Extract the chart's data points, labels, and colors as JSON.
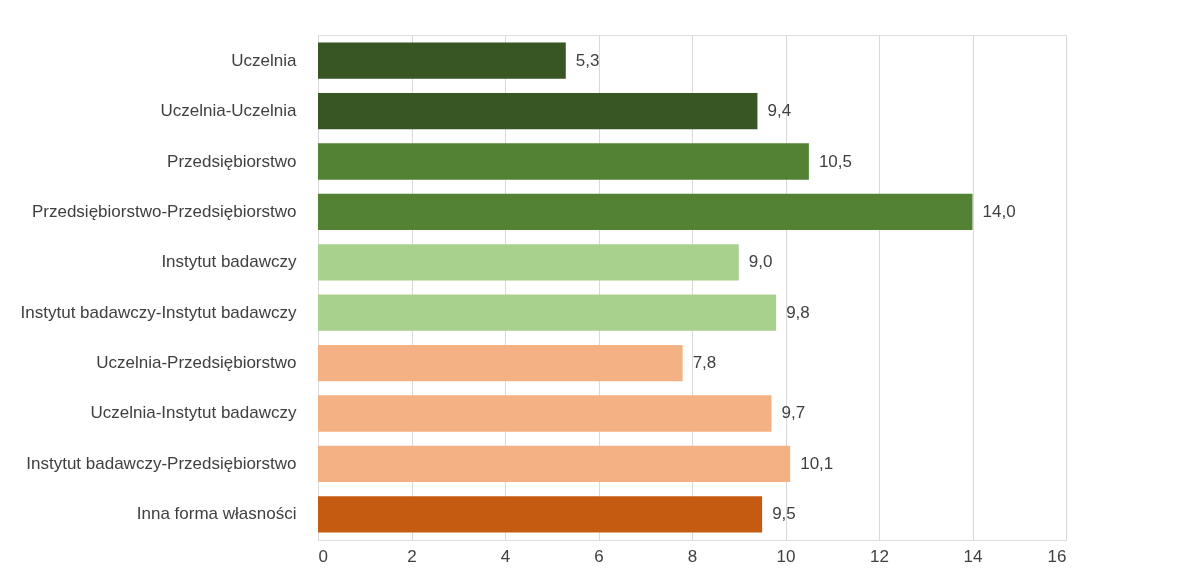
{
  "chart_data": {
    "type": "bar",
    "orientation": "horizontal",
    "categories": [
      "Uczelnia",
      "Uczelnia-Uczelnia",
      "Przedsiębiorstwo",
      "Przedsiębiorstwo-Przedsiębiorstwo",
      "Instytut badawczy",
      "Instytut badawczy-Instytut badawczy",
      "Uczelnia-Przedsiębiorstwo",
      "Uczelnia-Instytut badawczy",
      "Instytut badawczy-Przedsiębiorstwo",
      "Inna forma własności"
    ],
    "values": [
      5.3,
      9.4,
      10.5,
      14.0,
      9.0,
      9.8,
      7.8,
      9.7,
      10.1,
      9.5
    ],
    "value_labels": [
      "5,3",
      "9,4",
      "10,5",
      "14,0",
      "9,0",
      "9,8",
      "7,8",
      "9,7",
      "10,1",
      "9,5"
    ],
    "colors": [
      "#375623",
      "#375623",
      "#548235",
      "#548235",
      "#a9d18e",
      "#a9d18e",
      "#f4b183",
      "#f4b183",
      "#f4b183",
      "#c55a11"
    ],
    "xlim": [
      0,
      16
    ],
    "xticks": [
      0,
      2,
      4,
      6,
      8,
      10,
      12,
      14,
      16
    ],
    "grid": "x"
  }
}
